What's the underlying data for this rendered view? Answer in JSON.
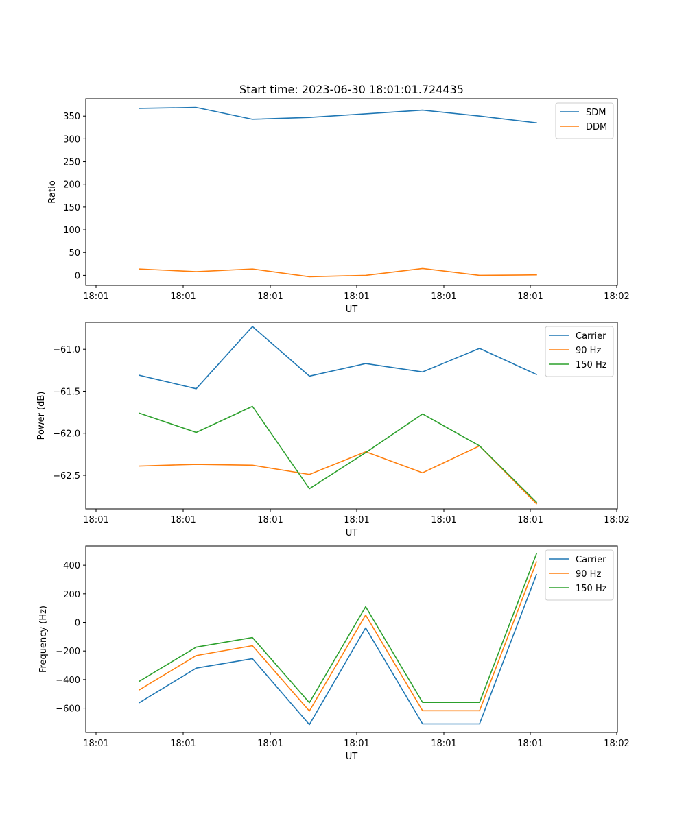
{
  "figure": {
    "title": "Start time: 2023-06-30 18:01:01.724435"
  },
  "chart_data": [
    {
      "type": "line",
      "title": "Start time: 2023-06-30 18:01:01.724435",
      "xlabel": "UT",
      "ylabel": "Ratio",
      "x_tick_labels": [
        "18:01",
        "18:01",
        "18:01",
        "18:01",
        "18:01",
        "18:01",
        "18:02"
      ],
      "ylim": [
        -22,
        388
      ],
      "y_ticks": [
        0,
        50,
        100,
        150,
        200,
        250,
        300,
        350
      ],
      "legend": "top-right",
      "grid": false,
      "series": [
        {
          "name": "SDM",
          "color": "#1f77b4",
          "values": [
            367,
            369,
            343,
            347,
            355,
            363,
            350,
            335
          ]
        },
        {
          "name": "DDM",
          "color": "#ff7f0e",
          "values": [
            14,
            8,
            14,
            -3,
            0,
            15,
            0,
            1
          ]
        }
      ]
    },
    {
      "type": "line",
      "title": "",
      "xlabel": "UT",
      "ylabel": "Power (dB)",
      "x_tick_labels": [
        "18:01",
        "18:01",
        "18:01",
        "18:01",
        "18:01",
        "18:01",
        "18:02"
      ],
      "ylim": [
        -62.9,
        -60.68
      ],
      "y_ticks": [
        -62.5,
        -62.0,
        -61.5,
        -61.0
      ],
      "y_tick_labels": [
        "−62.5",
        "−62.0",
        "−61.5",
        "−61.0"
      ],
      "legend": "top-right",
      "grid": false,
      "series": [
        {
          "name": "Carrier",
          "color": "#1f77b4",
          "values": [
            -61.31,
            -61.47,
            -60.73,
            -61.32,
            -61.17,
            -61.27,
            -60.99,
            -61.3
          ]
        },
        {
          "name": "90 Hz",
          "color": "#ff7f0e",
          "values": [
            -62.39,
            -62.37,
            -62.38,
            -62.49,
            -62.22,
            -62.47,
            -62.15,
            -62.84
          ]
        },
        {
          "name": "150 Hz",
          "color": "#2ca02c",
          "values": [
            -61.76,
            -61.99,
            -61.68,
            -62.66,
            -62.23,
            -61.77,
            -62.15,
            -62.82
          ]
        }
      ]
    },
    {
      "type": "line",
      "title": "",
      "xlabel": "UT",
      "ylabel": "Frequency (Hz)",
      "x_tick_labels": [
        "18:01",
        "18:01",
        "18:01",
        "18:01",
        "18:01",
        "18:01",
        "18:02"
      ],
      "ylim": [
        -770,
        535
      ],
      "y_ticks": [
        -600,
        -400,
        -200,
        0,
        200,
        400
      ],
      "y_tick_labels": [
        "−600",
        "−400",
        "−200",
        "0",
        "200",
        "400"
      ],
      "legend": "top-right",
      "grid": false,
      "series": [
        {
          "name": "Carrier",
          "color": "#1f77b4",
          "values": [
            -562,
            -320,
            -254,
            -715,
            -38,
            -710,
            -710,
            335
          ]
        },
        {
          "name": "90 Hz",
          "color": "#ff7f0e",
          "values": [
            -472,
            -232,
            -163,
            -620,
            52,
            -618,
            -618,
            423
          ]
        },
        {
          "name": "150 Hz",
          "color": "#2ca02c",
          "values": [
            -412,
            -173,
            -106,
            -562,
            110,
            -560,
            -560,
            480
          ]
        }
      ]
    }
  ]
}
